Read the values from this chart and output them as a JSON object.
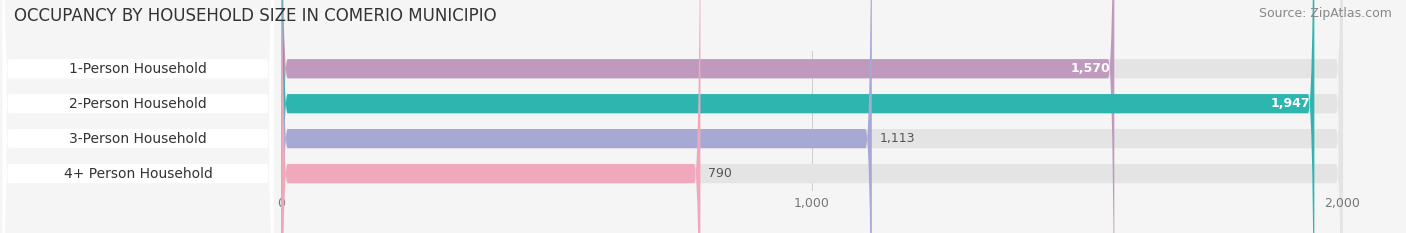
{
  "title": "OCCUPANCY BY HOUSEHOLD SIZE IN COMERIO MUNICIPIO",
  "source": "Source: ZipAtlas.com",
  "categories": [
    "1-Person Household",
    "2-Person Household",
    "3-Person Household",
    "4+ Person Household"
  ],
  "values": [
    1570,
    1947,
    1113,
    790
  ],
  "bar_colors": [
    "#c09abe",
    "#2db5b0",
    "#a8a8d4",
    "#f0a8bc"
  ],
  "label_colors": [
    "white",
    "white",
    "#555555",
    "#555555"
  ],
  "xlim": [
    -530,
    2080
  ],
  "data_xlim": [
    0,
    2000
  ],
  "xticks": [
    0,
    1000,
    2000
  ],
  "background_color": "#f5f5f5",
  "bar_background_color": "#e4e4e4",
  "title_fontsize": 12,
  "source_fontsize": 9,
  "label_fontsize": 10,
  "value_fontsize": 9,
  "bar_height": 0.55,
  "figsize": [
    14.06,
    2.33
  ],
  "dpi": 100
}
